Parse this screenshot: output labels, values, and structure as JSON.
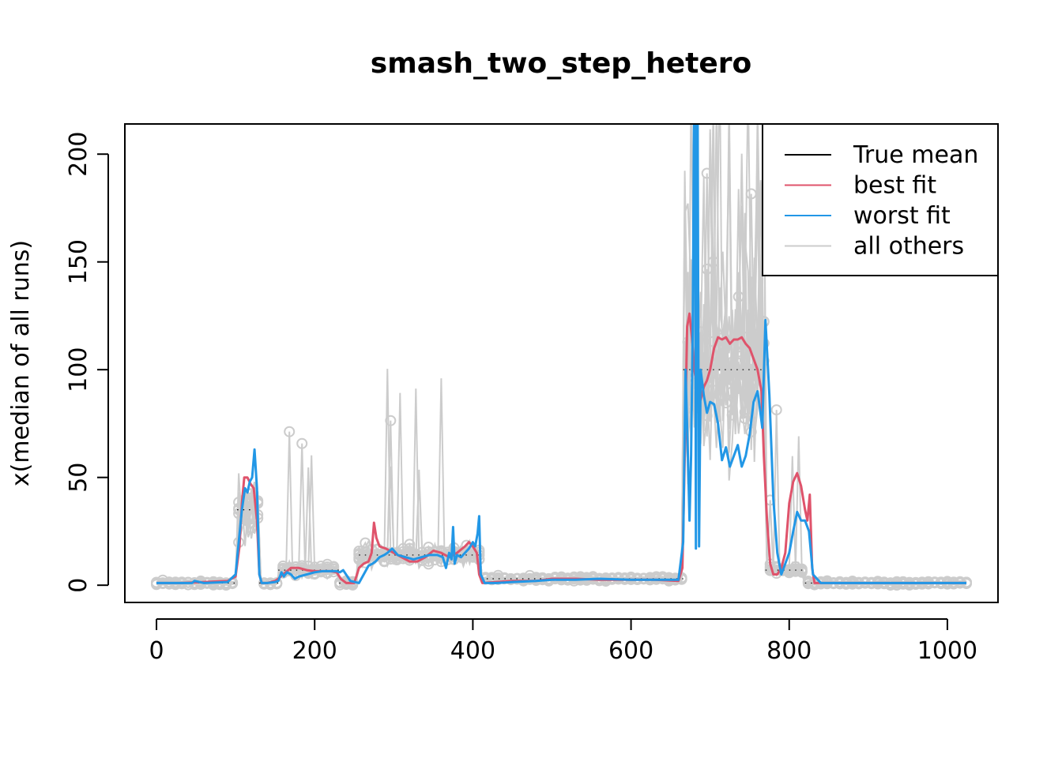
{
  "chart_data": {
    "type": "line",
    "title": "smash_two_step_hetero",
    "xlabel": "",
    "ylabel": "x(median of all runs)",
    "xlim": [
      -40,
      1064
    ],
    "ylim": [
      -8,
      214
    ],
    "xticks": [
      0,
      200,
      400,
      600,
      800,
      1000
    ],
    "yticks": [
      0,
      50,
      100,
      150,
      200
    ],
    "legend": {
      "position": "top-right",
      "entries": [
        {
          "label": "True mean",
          "color": "#000000"
        },
        {
          "label": "best fit",
          "color": "#DF536B"
        },
        {
          "label": "worst fit",
          "color": "#2297E6"
        },
        {
          "label": "all others",
          "color": "#CCCCCC"
        }
      ]
    },
    "true_mean": {
      "name": "True mean",
      "color": "#000000",
      "segments": [
        {
          "x": [
            0,
            102
          ],
          "y": 1
        },
        {
          "x": [
            102,
            130
          ],
          "y": 35
        },
        {
          "x": [
            130,
            154
          ],
          "y": 1
        },
        {
          "x": [
            154,
            231
          ],
          "y": 7
        },
        {
          "x": [
            231,
            256
          ],
          "y": 1
        },
        {
          "x": [
            256,
            410
          ],
          "y": 14
        },
        {
          "x": [
            410,
            666
          ],
          "y": 3
        },
        {
          "x": [
            666,
            770
          ],
          "y": 100
        },
        {
          "x": [
            770,
            820
          ],
          "y": 7
        },
        {
          "x": [
            820,
            1024
          ],
          "y": 1
        }
      ]
    },
    "series": [
      {
        "name": "best fit",
        "color": "#DF536B",
        "x": [
          0,
          30,
          60,
          90,
          100,
          105,
          108,
          111,
          115,
          119,
          123,
          127,
          130,
          133,
          140,
          150,
          154,
          160,
          170,
          180,
          190,
          200,
          210,
          220,
          228,
          233,
          240,
          250,
          256,
          262,
          268,
          272,
          275,
          278,
          282,
          290,
          300,
          310,
          320,
          330,
          340,
          350,
          360,
          370,
          380,
          390,
          395,
          400,
          405,
          408,
          412,
          430,
          450,
          480,
          500,
          530,
          560,
          600,
          630,
          660,
          665,
          668,
          671,
          674,
          677,
          680,
          684,
          688,
          692,
          696,
          700,
          705,
          710,
          715,
          720,
          725,
          730,
          735,
          740,
          745,
          750,
          755,
          760,
          765,
          768,
          772,
          776,
          780,
          785,
          790,
          795,
          800,
          805,
          810,
          815,
          820,
          823,
          826,
          829,
          832,
          840,
          860,
          900,
          950,
          1000,
          1024
        ],
        "y": [
          1,
          1,
          1.5,
          2,
          4,
          18,
          38,
          50,
          50,
          47,
          45,
          30,
          5,
          1,
          1,
          2,
          3,
          5,
          8,
          8,
          7,
          6.5,
          6.5,
          6.5,
          6,
          3,
          1,
          1,
          8,
          10,
          11,
          15,
          29,
          22,
          18,
          17,
          15,
          13,
          11,
          11,
          13,
          16,
          15,
          13,
          15,
          18,
          20,
          18,
          15,
          5,
          1,
          1.5,
          2,
          2,
          3,
          3,
          2.5,
          2.5,
          2.5,
          2,
          8,
          60,
          120,
          126,
          115,
          100,
          90,
          86,
          92,
          95,
          100,
          110,
          115,
          114,
          115,
          112,
          114,
          114,
          115,
          112,
          110,
          105,
          100,
          90,
          60,
          30,
          10,
          5,
          5,
          8,
          15,
          38,
          48,
          52,
          46,
          35,
          30,
          42,
          8,
          1,
          1,
          1,
          1,
          1,
          1,
          1
        ]
      },
      {
        "name": "worst fit",
        "color": "#2297E6",
        "x": [
          0,
          30,
          45,
          48,
          60,
          90,
          100,
          104,
          108,
          112,
          115,
          118,
          121,
          124,
          127,
          130,
          133,
          140,
          150,
          154,
          158,
          161,
          165,
          170,
          175,
          180,
          190,
          200,
          210,
          220,
          228,
          232,
          236,
          245,
          256,
          262,
          268,
          273,
          277,
          282,
          288,
          292,
          298,
          305,
          315,
          325,
          335,
          345,
          355,
          362,
          366,
          370,
          373,
          375,
          377,
          380,
          385,
          390,
          395,
          400,
          403,
          406,
          408,
          410,
          415,
          430,
          450,
          480,
          500,
          530,
          560,
          600,
          630,
          660,
          666,
          669,
          672,
          674,
          676,
          678,
          679,
          680,
          681,
          682,
          683,
          684,
          685,
          686,
          688,
          692,
          696,
          700,
          705,
          710,
          715,
          720,
          725,
          730,
          735,
          740,
          745,
          750,
          755,
          760,
          763,
          766,
          770,
          775,
          780,
          785,
          790,
          795,
          800,
          805,
          810,
          815,
          820,
          825,
          830,
          840,
          870,
          900,
          950,
          1000,
          1024
        ],
        "y": [
          1,
          1,
          1,
          2,
          1,
          1.5,
          5,
          20,
          35,
          45,
          43,
          48,
          50,
          63,
          45,
          5,
          1,
          1,
          1.5,
          2,
          6,
          4,
          6,
          5,
          3,
          4,
          5,
          6,
          6.5,
          6.5,
          6.5,
          6,
          7,
          2,
          1,
          5,
          9,
          10,
          11,
          13,
          14,
          15,
          17,
          14,
          13,
          12,
          13,
          14,
          14,
          13,
          8,
          15,
          12,
          27,
          10,
          14,
          13,
          15,
          17,
          20,
          18,
          24,
          32,
          5,
          1,
          1,
          1.5,
          2,
          2.5,
          2.5,
          3,
          2.5,
          2.5,
          2.5,
          20,
          100,
          60,
          30,
          60,
          120,
          180,
          240,
          200,
          17,
          210,
          240,
          120,
          18,
          100,
          88,
          80,
          85,
          84,
          75,
          58,
          64,
          55,
          60,
          65,
          55,
          60,
          70,
          85,
          90,
          82,
          73,
          123,
          88,
          40,
          15,
          5,
          10,
          15,
          25,
          34,
          30,
          30,
          25,
          5,
          1,
          1,
          1,
          1,
          1,
          1
        ]
      }
    ],
    "others": {
      "name": "all others",
      "color": "#CCCCCC",
      "count": 14
    }
  }
}
